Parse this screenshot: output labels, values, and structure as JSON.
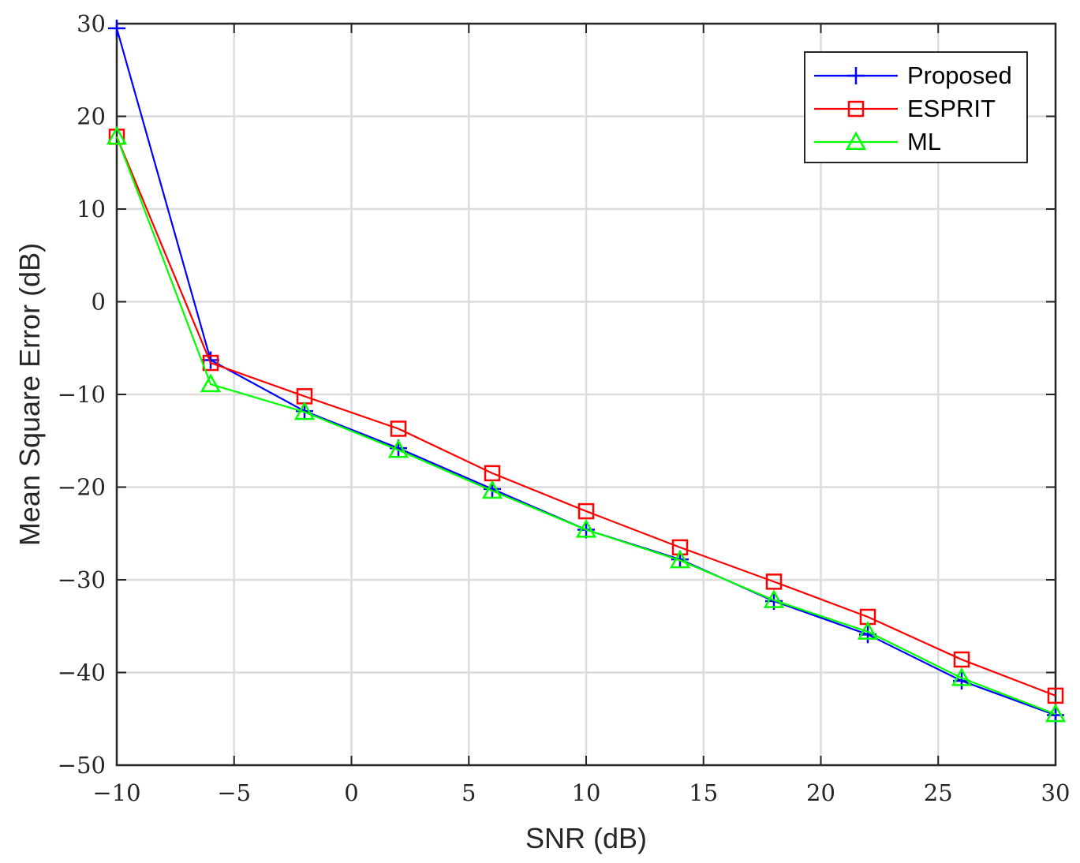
{
  "chart_data": {
    "type": "line",
    "title": "",
    "xlabel": "SNR (dB)",
    "ylabel": "Mean Square Error (dB)",
    "xlim": [
      -10,
      30
    ],
    "ylim": [
      -50,
      30
    ],
    "xticks": [
      -10,
      -5,
      0,
      5,
      10,
      15,
      20,
      25,
      30
    ],
    "yticks": [
      -50,
      -40,
      -30,
      -20,
      -10,
      0,
      10,
      20,
      30
    ],
    "xtick_labels": [
      "−10",
      "−5",
      "0",
      "5",
      "10",
      "15",
      "20",
      "25",
      "30"
    ],
    "ytick_labels": [
      "−50",
      "−40",
      "−30",
      "−20",
      "−10",
      "0",
      "10",
      "20",
      "30"
    ],
    "grid": true,
    "legend_position": "top-right",
    "x": [
      -10,
      -6,
      -2,
      2,
      6,
      10,
      14,
      18,
      22,
      26,
      30
    ],
    "series": [
      {
        "name": "Proposed",
        "color": "#0000ff",
        "marker": "plus",
        "values": [
          29.5,
          -6.3,
          -11.8,
          -15.8,
          -20.2,
          -24.6,
          -27.8,
          -32.3,
          -35.9,
          -40.9,
          -44.6
        ]
      },
      {
        "name": "ESPRIT",
        "color": "#ff0000",
        "marker": "square",
        "values": [
          17.8,
          -6.6,
          -10.2,
          -13.7,
          -18.5,
          -22.6,
          -26.5,
          -30.2,
          -34.0,
          -38.6,
          -42.5
        ]
      },
      {
        "name": "ML",
        "color": "#00ff00",
        "marker": "triangle",
        "values": [
          17.8,
          -8.9,
          -11.9,
          -16.0,
          -20.4,
          -24.6,
          -27.9,
          -32.2,
          -35.6,
          -40.6,
          -44.5
        ]
      }
    ]
  }
}
